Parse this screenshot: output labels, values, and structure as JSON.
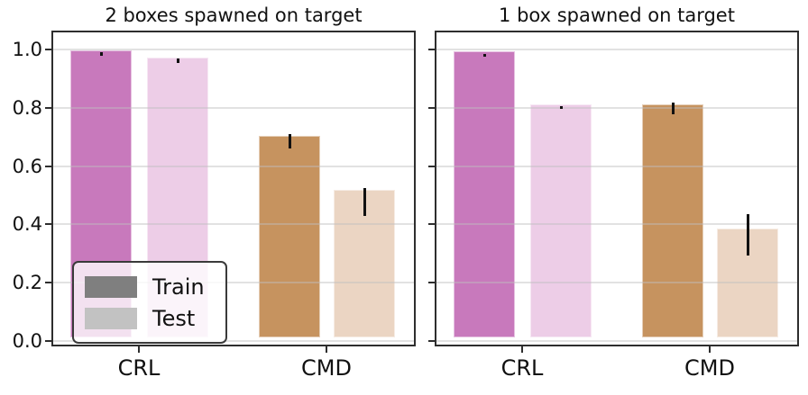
{
  "figure": {
    "background": "#ffffff",
    "text_color": "#111111"
  },
  "colors": {
    "spine": "#2e2e2e",
    "grid": "rgba(190,190,190,0.45)",
    "error_bar": "#111111",
    "bar_colors": {
      "Train": [
        "#C879BC",
        "#C6935F"
      ],
      "Test": [
        "#EDCDE7",
        "#EBD5C3"
      ]
    },
    "legend_train_swatch": "#7f7f7f",
    "legend_test_swatch": "#C2C2C2"
  },
  "legend": {
    "position": "lower left",
    "entries": [
      {
        "label": "Train"
      },
      {
        "label": "Test"
      }
    ]
  },
  "chart_data": [
    {
      "type": "bar",
      "title": "2 boxes spawned on target",
      "categories": [
        "CRL",
        "CMD"
      ],
      "series": [
        {
          "name": "Train",
          "values": [
            0.985,
            0.69
          ],
          "error_ranges": [
            [
              0.978,
              0.992
            ],
            [
              0.66,
              0.71
            ]
          ]
        },
        {
          "name": "Test",
          "values": [
            0.96,
            0.505
          ],
          "error_ranges": [
            [
              0.955,
              0.968
            ],
            [
              0.43,
              0.525
            ]
          ]
        }
      ],
      "xlabel": "",
      "ylabel": "",
      "ylim": [
        0,
        1.06
      ],
      "yticks": [
        "0.0",
        "0.2",
        "0.4",
        "0.6",
        "0.8",
        "1.0"
      ],
      "show_ytick_labels": true,
      "grid": true,
      "legend_position": "lower left"
    },
    {
      "type": "bar",
      "title": "1 box spawned on target",
      "categories": [
        "CRL",
        "CMD"
      ],
      "series": [
        {
          "name": "Train",
          "values": [
            0.98,
            0.8
          ],
          "error_ranges": [
            [
              0.974,
              0.986
            ],
            [
              0.778,
              0.818
            ]
          ]
        },
        {
          "name": "Test",
          "values": [
            0.8,
            0.375
          ],
          "error_ranges": [
            [
              0.795,
              0.807
            ],
            [
              0.293,
              0.435
            ]
          ]
        }
      ],
      "xlabel": "",
      "ylabel": "",
      "ylim": [
        0,
        1.06
      ],
      "yticks": [
        "0.0",
        "0.2",
        "0.4",
        "0.6",
        "0.8",
        "1.0"
      ],
      "show_ytick_labels": false,
      "grid": true,
      "legend_position": null
    }
  ]
}
